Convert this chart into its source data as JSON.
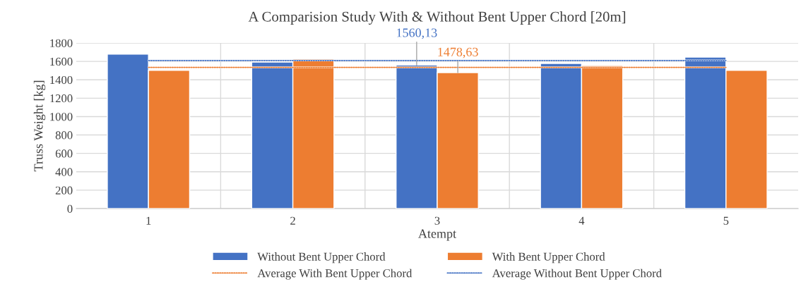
{
  "chart_data": {
    "type": "bar",
    "title": "A Comparision Study With & Without Bent Upper Chord [20m]",
    "xlabel": "Atempt",
    "ylabel": "Truss Weight [kg]",
    "categories": [
      "1",
      "2",
      "3",
      "4",
      "5"
    ],
    "series": [
      {
        "name": "Without Bent Upper Chord",
        "color": "#4472c4",
        "values": [
          1679,
          1592,
          1560.13,
          1577,
          1646
        ],
        "value_labels": [
          null,
          null,
          "1560,13",
          null,
          null
        ]
      },
      {
        "name": "With Bent Upper Chord",
        "color": "#ed7d31",
        "values": [
          1503,
          1626,
          1478.63,
          1554,
          1503
        ],
        "value_labels": [
          null,
          null,
          "1478,63",
          null,
          null
        ]
      },
      {
        "name": "Average With Bent Upper Chord",
        "type": "line",
        "line_style": "dotted",
        "color": "#ed7d31",
        "values": [
          1535,
          1535,
          1535,
          1535,
          1535
        ]
      },
      {
        "name": "Average Without Bent Upper Chord",
        "type": "line",
        "line_style": "dotted",
        "color": "#4472c4",
        "values": [
          1610,
          1610,
          1610,
          1610,
          1610
        ]
      }
    ],
    "ylim": [
      0,
      1800
    ],
    "yticks": [
      0,
      200,
      400,
      600,
      800,
      1000,
      1200,
      1400,
      1600,
      1800
    ],
    "grid": true,
    "legend": "bottom"
  }
}
